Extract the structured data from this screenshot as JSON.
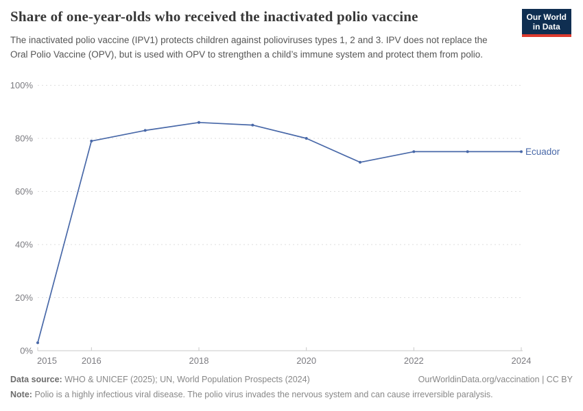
{
  "header": {
    "title": "Share of one-year-olds who received the inactivated polio vaccine",
    "subtitle": "The inactivated polio vaccine (IPV1) protects children against polioviruses types 1, 2 and 3. IPV does not replace the Oral Polio Vaccine (OPV), but is used with OPV to strengthen a child’s immune system and protect them from polio.",
    "logo": {
      "line1": "Our World",
      "line2": "in Data",
      "bg_color": "#0f2e51",
      "accent_color": "#dc3a2e"
    }
  },
  "chart_data": {
    "type": "line",
    "title": "Share of one-year-olds who received the inactivated polio vaccine",
    "x": [
      2015,
      2016,
      2017,
      2018,
      2019,
      2020,
      2021,
      2022,
      2023,
      2024
    ],
    "series": [
      {
        "name": "Ecuador",
        "color": "#4868a8",
        "values": [
          3,
          79,
          83,
          86,
          85,
          80,
          71,
          75,
          75,
          75
        ]
      }
    ],
    "xlabel": "",
    "ylabel": "",
    "xlim": [
      2015,
      2024
    ],
    "ylim": [
      0,
      100
    ],
    "x_ticks": [
      2015,
      2016,
      2018,
      2020,
      2022,
      2024
    ],
    "y_ticks": [
      0,
      20,
      40,
      60,
      80,
      100
    ],
    "y_tick_suffix": "%",
    "grid": "horizontal-dashed",
    "legend_position": "end-of-line",
    "gridline_color": "#dddddd",
    "axis_color": "#c8c8c8",
    "tick_label_color": "#7b7b80"
  },
  "footer": {
    "source_label": "Data source:",
    "source_text": "WHO & UNICEF (2025); UN, World Population Prospects (2024)",
    "link_text": "OurWorldinData.org/vaccination | CC BY",
    "note_label": "Note:",
    "note_text": "Polio is a highly infectious viral disease. The polio virus invades the nervous system and can cause irreversible paralysis."
  }
}
